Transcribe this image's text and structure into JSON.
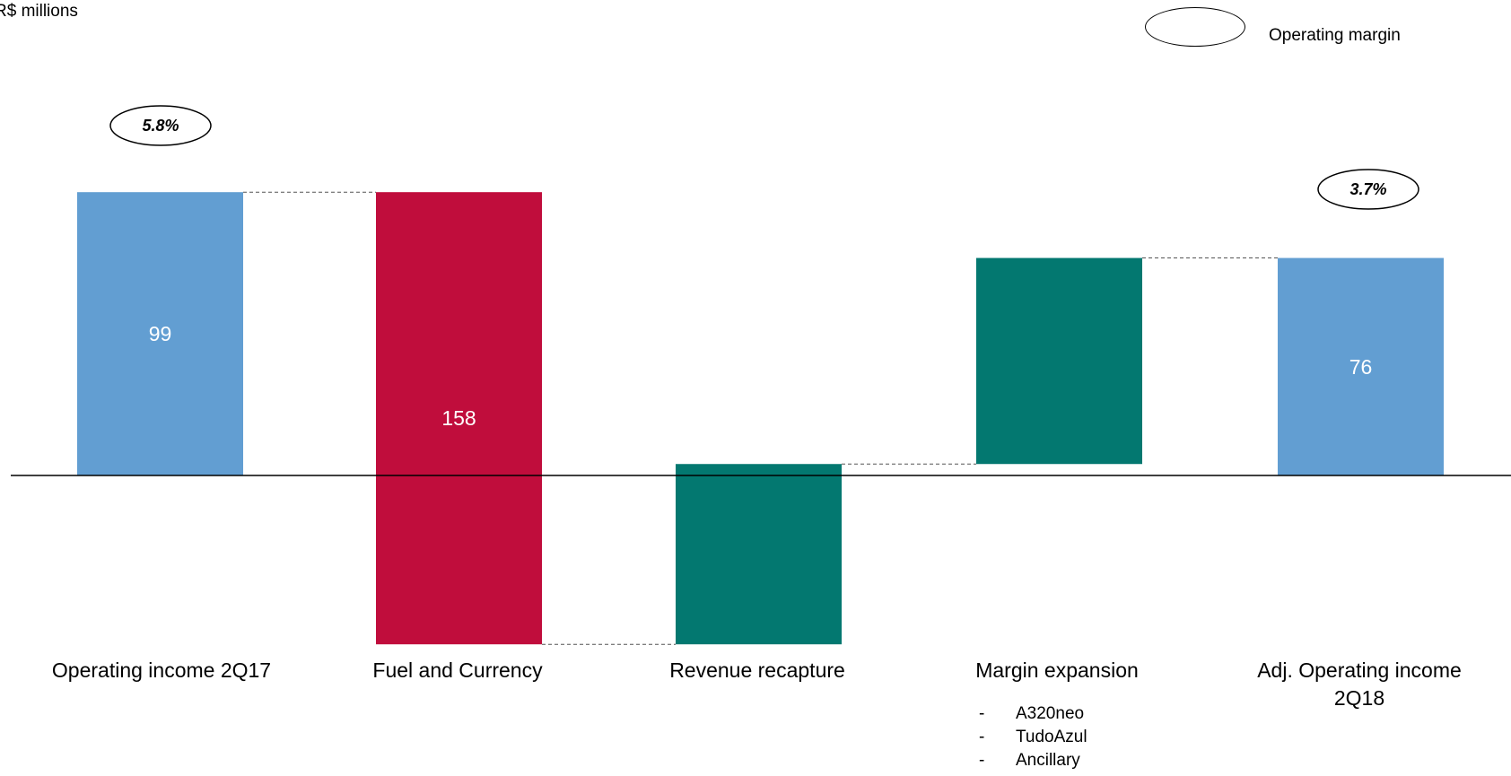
{
  "unit_label": "R$ millions",
  "legend": {
    "label": "Operating margin"
  },
  "colors": {
    "base": "#629ed2",
    "negative": "#c00d3c",
    "positive": "#037870",
    "axis": "#000000",
    "connector": "#555555"
  },
  "chart_data": {
    "type": "bar",
    "subtype": "waterfall",
    "categories": [
      "Operating income 2Q17",
      "Fuel and Currency",
      "Revenue recapture",
      "Margin expansion",
      "Adj. Operating income 2Q18"
    ],
    "steps": [
      {
        "kind": "total",
        "value": 99,
        "label": "99",
        "color": "base"
      },
      {
        "kind": "decrease",
        "value": -158,
        "label": "158",
        "color": "negative"
      },
      {
        "kind": "increase",
        "value": 63,
        "label": "",
        "color": "positive"
      },
      {
        "kind": "increase",
        "value": 72,
        "label": "",
        "color": "positive"
      },
      {
        "kind": "total",
        "value": 76,
        "label": "76",
        "color": "base"
      }
    ],
    "margins": [
      {
        "category": "Operating income 2Q17",
        "value": "5.8%"
      },
      {
        "category": "Adj. Operating income 2Q18",
        "value": "3.7%"
      }
    ],
    "ylim": [
      -60,
      99
    ],
    "grid": false,
    "legend_position": "top-right"
  },
  "margin_expansion_items": [
    "A320neo",
    "TudoAzul",
    "Ancillary"
  ]
}
